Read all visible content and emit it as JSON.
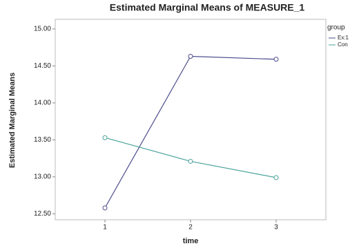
{
  "chart_data": {
    "type": "line",
    "title": "Estimated Marginal Means of MEASURE_1",
    "x_label": "time",
    "y_label": "Estimated Marginal Means",
    "categories": [
      "1",
      "2",
      "3"
    ],
    "series": [
      {
        "name": "Ex:1",
        "color": "#4b4b8c",
        "values": [
          12.58,
          14.63,
          14.59
        ]
      },
      {
        "name": "Con",
        "color": "#4aa39a",
        "values": [
          13.53,
          13.21,
          12.99
        ]
      }
    ],
    "legend_title": "group",
    "ylim": [
      12.42,
      15.13
    ],
    "yticks": [
      {
        "value": 12.5,
        "label": "12.50"
      },
      {
        "value": 13,
        "label": "13.00"
      },
      {
        "value": 13.5,
        "label": "13.50"
      },
      {
        "value": 14,
        "label": "14.00"
      },
      {
        "value": 14.5,
        "label": "14.50"
      },
      {
        "value": 15,
        "label": "15.00"
      }
    ]
  }
}
